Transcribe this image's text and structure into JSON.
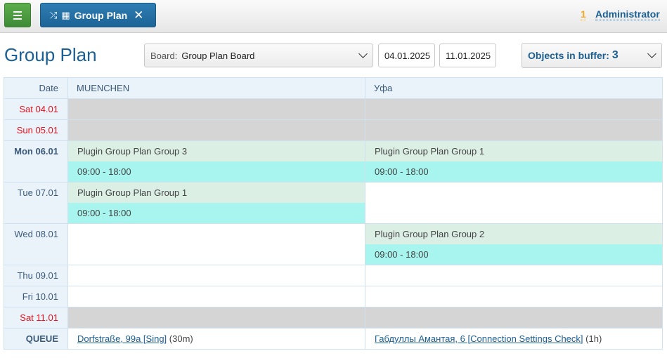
{
  "header": {
    "tab_label": "Group Plan",
    "notification_count": "1",
    "user": "Administrator"
  },
  "page": {
    "title": "Group Plan"
  },
  "filters": {
    "board_label": "Board:",
    "board_value": "Group Plan Board",
    "date_from": "04.01.2025",
    "date_to": "11.01.2025",
    "buffer_label": "Objects in buffer:",
    "buffer_count": "3"
  },
  "colors": {
    "accent": "#1a5f95",
    "menu_green": "#4c9c40",
    "weekend": "#e8101a",
    "event_title_bg": "#dcefe4",
    "event_time_bg": "#a8f4ee",
    "blocked_bg": "#d5d5d5"
  },
  "table": {
    "date_header": "Date",
    "columns": [
      "MUENCHEN",
      "Уфа"
    ],
    "rows": [
      {
        "label": "Sat 04.01",
        "weekend": true
      },
      {
        "label": "Sun 05.01",
        "weekend": true
      },
      {
        "label": "Mon 06.01",
        "bold": true,
        "cells": [
          {
            "title": "Plugin Group Plan Group 3",
            "time": "09:00 - 18:00"
          },
          {
            "title": "Plugin Group Plan Group 1",
            "time": "09:00 - 18:00"
          }
        ]
      },
      {
        "label": "Tue 07.01",
        "cells": [
          {
            "title": "Plugin Group Plan Group 1",
            "time": "09:00 - 18:00"
          }
        ]
      },
      {
        "label": "Wed 08.01",
        "cells": [
          null,
          {
            "title": "Plugin Group Plan Group 2",
            "time": "09:00 - 18:00"
          }
        ]
      },
      {
        "label": "Thu 09.01"
      },
      {
        "label": "Fri 10.01"
      },
      {
        "label": "Sat 11.01",
        "weekend": true
      }
    ],
    "queue": {
      "label": "QUEUE",
      "items": [
        {
          "link": "Dorfstraße, 99a [Sing]",
          "duration": "(30m)"
        },
        {
          "link": "Габдуллы Амантая, 6 [Connection Settings Check]",
          "duration": "(1h)"
        }
      ]
    }
  }
}
